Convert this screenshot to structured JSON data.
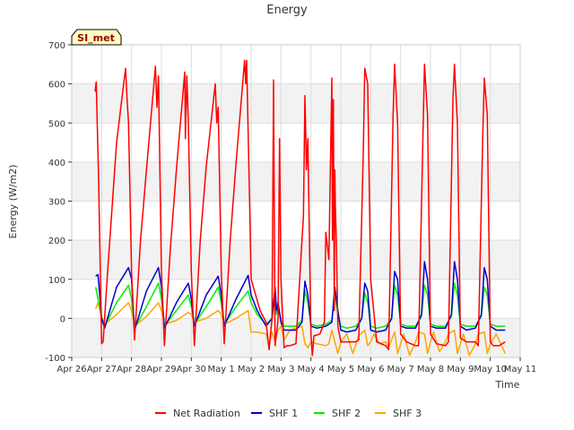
{
  "chart_data": {
    "type": "line",
    "title": "Energy",
    "xlabel": "Time",
    "ylabel": "Energy (W/m2)",
    "site_label": "SI_met",
    "ylim": [
      -100,
      700
    ],
    "y_ticks": [
      -100,
      0,
      100,
      200,
      300,
      400,
      500,
      600,
      700
    ],
    "xlim": [
      0,
      15
    ],
    "x_ticks": [
      0,
      1,
      2,
      3,
      4,
      5,
      6,
      7,
      8,
      9,
      10,
      11,
      12,
      13,
      14,
      15
    ],
    "x_tick_labels": [
      "Apr 26",
      "Apr 27",
      "Apr 28",
      "Apr 29",
      "Apr 30",
      "May 1",
      "May 2",
      "May 3",
      "May 4",
      "May 5",
      "May 6",
      "May 7",
      "May 8",
      "May 9",
      "May 10",
      "May 11"
    ],
    "grid": true,
    "legend_position": "bottom",
    "series": [
      {
        "name": "Net Radiation",
        "color": "#ff0000",
        "x": [
          0.78,
          0.82,
          0.9,
          1.0,
          1.05,
          1.2,
          1.5,
          1.8,
          1.85,
          1.9,
          2.0,
          2.1,
          2.3,
          2.5,
          2.8,
          2.85,
          2.9,
          3.0,
          3.1,
          3.3,
          3.5,
          3.78,
          3.8,
          3.85,
          3.9,
          4.0,
          4.1,
          4.3,
          4.5,
          4.8,
          4.85,
          4.9,
          5.0,
          5.1,
          5.3,
          5.5,
          5.78,
          5.82,
          5.85,
          5.95,
          6.0,
          6.3,
          6.5,
          6.6,
          6.7,
          6.75,
          6.8,
          6.9,
          6.95,
          7.0,
          7.1,
          7.2,
          7.3,
          7.5,
          7.7,
          7.75,
          7.8,
          7.85,
          7.9,
          7.95,
          8.0,
          8.05,
          8.1,
          8.3,
          8.45,
          8.5,
          8.6,
          8.7,
          8.72,
          8.75,
          8.78,
          8.8,
          8.82,
          8.85,
          8.9,
          9.0,
          9.2,
          9.5,
          9.6,
          9.75,
          9.8,
          9.9,
          10.0,
          10.2,
          10.5,
          10.6,
          10.75,
          10.8,
          10.9,
          11.0,
          11.2,
          11.5,
          11.6,
          11.75,
          11.8,
          11.9,
          12.0,
          12.2,
          12.5,
          12.6,
          12.75,
          12.8,
          12.9,
          13.0,
          13.2,
          13.5,
          13.6,
          13.75,
          13.8,
          13.9,
          14.0,
          14.1,
          14.3,
          14.5
        ],
        "y": [
          580,
          605,
          350,
          -65,
          -60,
          120,
          450,
          640,
          560,
          500,
          120,
          -55,
          200,
          380,
          645,
          540,
          620,
          120,
          -70,
          180,
          380,
          630,
          460,
          620,
          500,
          120,
          -70,
          200,
          390,
          600,
          500,
          540,
          120,
          -65,
          200,
          400,
          660,
          600,
          660,
          300,
          100,
          20,
          -10,
          -80,
          0,
          610,
          -70,
          -5,
          460,
          100,
          -75,
          -70,
          -70,
          -65,
          200,
          260,
          570,
          380,
          460,
          200,
          -40,
          -95,
          -45,
          -40,
          -10,
          220,
          150,
          615,
          200,
          560,
          20,
          380,
          280,
          200,
          -20,
          -60,
          -60,
          -60,
          -55,
          420,
          640,
          600,
          100,
          -60,
          -70,
          -80,
          520,
          650,
          500,
          -40,
          -60,
          -70,
          -70,
          480,
          650,
          520,
          -40,
          -65,
          -70,
          -60,
          560,
          650,
          500,
          -50,
          -60,
          -60,
          -70,
          470,
          615,
          520,
          -60,
          -70,
          -70,
          -60
        ]
      },
      {
        "name": "SHF 1",
        "color": "#0000cc",
        "x": [
          0.8,
          0.88,
          1.0,
          1.1,
          1.5,
          1.9,
          2.0,
          2.1,
          2.5,
          2.9,
          3.0,
          3.1,
          3.5,
          3.9,
          4.0,
          4.1,
          4.5,
          4.9,
          5.0,
          5.1,
          5.5,
          5.9,
          6.0,
          6.2,
          6.5,
          6.7,
          6.8,
          6.85,
          6.9,
          7.0,
          7.1,
          7.5,
          7.7,
          7.8,
          7.9,
          8.0,
          8.2,
          8.5,
          8.7,
          8.8,
          8.9,
          9.0,
          9.2,
          9.5,
          9.7,
          9.8,
          9.9,
          10.0,
          10.2,
          10.5,
          10.7,
          10.8,
          10.9,
          11.0,
          11.2,
          11.5,
          11.7,
          11.8,
          11.9,
          12.0,
          12.2,
          12.5,
          12.7,
          12.8,
          12.9,
          13.0,
          13.2,
          13.5,
          13.7,
          13.8,
          13.9,
          14.0,
          14.2,
          14.5
        ],
        "y": [
          108,
          112,
          0,
          -25,
          80,
          130,
          100,
          -30,
          70,
          130,
          80,
          -25,
          40,
          90,
          50,
          -20,
          60,
          108,
          60,
          -20,
          50,
          110,
          60,
          20,
          -20,
          0,
          80,
          20,
          40,
          -10,
          -30,
          -30,
          -10,
          95,
          60,
          -20,
          -25,
          -20,
          -10,
          80,
          20,
          -30,
          -35,
          -30,
          0,
          90,
          70,
          -30,
          -35,
          -30,
          0,
          120,
          100,
          -20,
          -25,
          -25,
          10,
          145,
          100,
          -20,
          -25,
          -25,
          10,
          145,
          100,
          -20,
          -30,
          -25,
          10,
          130,
          100,
          -20,
          -30,
          -30
        ]
      },
      {
        "name": "SHF 2",
        "color": "#00ee00",
        "x": [
          0.8,
          0.88,
          1.0,
          1.1,
          1.5,
          1.9,
          2.0,
          2.1,
          2.5,
          2.9,
          3.0,
          3.1,
          3.5,
          3.9,
          4.0,
          4.1,
          4.5,
          4.9,
          5.0,
          5.1,
          5.5,
          5.9,
          6.0,
          6.2,
          6.5,
          6.7,
          6.8,
          6.85,
          6.9,
          7.0,
          7.1,
          7.5,
          7.7,
          7.8,
          7.9,
          8.0,
          8.2,
          8.5,
          8.7,
          8.8,
          8.9,
          9.0,
          9.2,
          9.5,
          9.7,
          9.8,
          9.9,
          10.0,
          10.2,
          10.5,
          10.7,
          10.8,
          10.9,
          11.0,
          11.2,
          11.5,
          11.7,
          11.8,
          11.9,
          12.0,
          12.2,
          12.5,
          12.7,
          12.8,
          12.9,
          13.0,
          13.2,
          13.5,
          13.7,
          13.8,
          13.9,
          14.0,
          14.2,
          14.5
        ],
        "y": [
          80,
          50,
          0,
          -20,
          40,
          85,
          50,
          -25,
          30,
          90,
          50,
          -20,
          20,
          60,
          30,
          -15,
          30,
          80,
          40,
          -15,
          30,
          70,
          40,
          10,
          -15,
          0,
          60,
          10,
          30,
          -5,
          -20,
          -20,
          -5,
          70,
          40,
          -15,
          -20,
          -15,
          -5,
          60,
          10,
          -20,
          -25,
          -20,
          0,
          65,
          40,
          -20,
          -25,
          -20,
          0,
          85,
          60,
          -15,
          -20,
          -20,
          5,
          85,
          60,
          -15,
          -20,
          -20,
          5,
          90,
          60,
          -15,
          -20,
          -20,
          5,
          80,
          60,
          -15,
          -20,
          -20
        ]
      },
      {
        "name": "SHF 3",
        "color": "#ffa500",
        "x": [
          0.8,
          0.88,
          1.0,
          1.1,
          1.5,
          1.9,
          2.0,
          2.1,
          2.5,
          2.9,
          3.0,
          3.1,
          3.5,
          3.9,
          4.0,
          4.1,
          4.5,
          4.9,
          5.0,
          5.1,
          5.5,
          5.9,
          6.0,
          6.2,
          6.5,
          6.6,
          6.7,
          6.8,
          6.9,
          7.0,
          7.1,
          7.3,
          7.5,
          7.7,
          7.8,
          7.9,
          8.0,
          8.2,
          8.5,
          8.6,
          8.7,
          8.8,
          8.9,
          9.0,
          9.2,
          9.4,
          9.6,
          9.8,
          9.9,
          10.0,
          10.1,
          10.3,
          10.5,
          10.6,
          10.8,
          10.9,
          11.0,
          11.1,
          11.3,
          11.5,
          11.6,
          11.8,
          11.9,
          12.0,
          12.1,
          12.3,
          12.5,
          12.6,
          12.8,
          12.9,
          13.0,
          13.1,
          13.3,
          13.5,
          13.6,
          13.8,
          13.9,
          14.0,
          14.2,
          14.5
        ],
        "y": [
          25,
          40,
          5,
          -15,
          10,
          40,
          20,
          -20,
          5,
          40,
          20,
          -15,
          -5,
          15,
          10,
          -10,
          0,
          20,
          10,
          -15,
          0,
          20,
          -35,
          -35,
          -40,
          -70,
          -35,
          -60,
          -30,
          -20,
          -55,
          -30,
          -25,
          -20,
          -65,
          -75,
          -60,
          -65,
          -70,
          -65,
          -30,
          -60,
          -90,
          -60,
          -40,
          -90,
          -45,
          -30,
          -70,
          -60,
          -40,
          -65,
          -60,
          -75,
          -35,
          -90,
          -65,
          -40,
          -95,
          -60,
          -35,
          -40,
          -90,
          -60,
          -35,
          -85,
          -60,
          -40,
          -30,
          -90,
          -65,
          -40,
          -95,
          -65,
          -40,
          -35,
          -90,
          -65,
          -40,
          -90
        ]
      }
    ]
  }
}
